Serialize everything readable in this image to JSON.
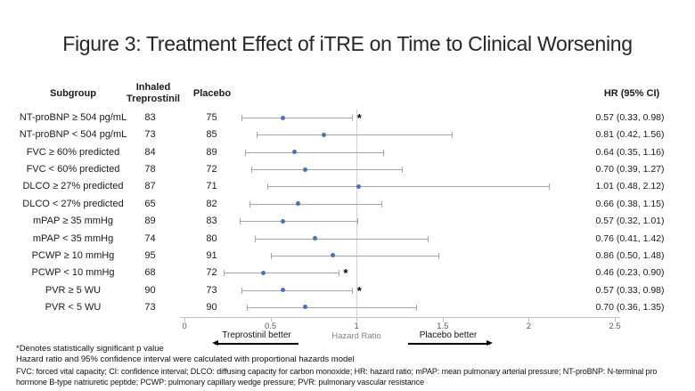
{
  "title": "Figure 3: Treatment Effect of iTRE on Time to Clinical Worsening",
  "table": {
    "headers": {
      "subgroup": "Subgroup",
      "treatment": "Inhaled Treprostinil",
      "placebo": "Placebo",
      "hr": "HR (95% CI)"
    }
  },
  "chart_data": {
    "type": "forest",
    "xlabel": "Hazard Ratio",
    "xlim": [
      0,
      2.5
    ],
    "x_ticks": [
      0,
      0.5,
      1,
      1.5,
      2,
      2.5
    ],
    "x_tick_labels": [
      "0",
      "0.5",
      "1",
      "1.5",
      "2",
      "2.5"
    ],
    "reference_line": 1,
    "direction_labels": {
      "left": "Treprostinil better",
      "right": "Placebo better"
    },
    "rows": [
      {
        "subgroup": "NT-proBNP ≥ 504 pg/mL",
        "treatment_n": "83",
        "placebo_n": "75",
        "hr": 0.57,
        "ci_lo": 0.33,
        "ci_hi": 0.98,
        "hr_text": "0.57 (0.33, 0.98)",
        "significant": true
      },
      {
        "subgroup": "NT-proBNP < 504 pg/mL",
        "treatment_n": "73",
        "placebo_n": "85",
        "hr": 0.81,
        "ci_lo": 0.42,
        "ci_hi": 1.56,
        "hr_text": "0.81 (0.42, 1.56)",
        "significant": false
      },
      {
        "subgroup": "FVC ≥ 60% predicted",
        "treatment_n": "84",
        "placebo_n": "89",
        "hr": 0.64,
        "ci_lo": 0.35,
        "ci_hi": 1.16,
        "hr_text": "0.64 (0.35, 1.16)",
        "significant": false
      },
      {
        "subgroup": "FVC < 60% predicted",
        "treatment_n": "78",
        "placebo_n": "72",
        "hr": 0.7,
        "ci_lo": 0.39,
        "ci_hi": 1.27,
        "hr_text": "0.70 (0.39, 1.27)",
        "significant": false
      },
      {
        "subgroup": "DLCO ≥ 27% predicted",
        "treatment_n": "87",
        "placebo_n": "71",
        "hr": 1.01,
        "ci_lo": 0.48,
        "ci_hi": 2.12,
        "hr_text": "1.01 (0.48, 2.12)",
        "significant": false
      },
      {
        "subgroup": "DLCO < 27% predicted",
        "treatment_n": "65",
        "placebo_n": "82",
        "hr": 0.66,
        "ci_lo": 0.38,
        "ci_hi": 1.15,
        "hr_text": "0.66 (0.38, 1.15)",
        "significant": false
      },
      {
        "subgroup": "mPAP ≥ 35 mmHg",
        "treatment_n": "89",
        "placebo_n": "83",
        "hr": 0.57,
        "ci_lo": 0.32,
        "ci_hi": 1.01,
        "hr_text": "0.57 (0.32, 1.01)",
        "significant": false
      },
      {
        "subgroup": "mPAP < 35 mmHg",
        "treatment_n": "74",
        "placebo_n": "80",
        "hr": 0.76,
        "ci_lo": 0.41,
        "ci_hi": 1.42,
        "hr_text": "0.76 (0.41, 1.42)",
        "significant": false
      },
      {
        "subgroup": "PCWP ≥ 10 mmHg",
        "treatment_n": "95",
        "placebo_n": "91",
        "hr": 0.86,
        "ci_lo": 0.5,
        "ci_hi": 1.48,
        "hr_text": "0.86 (0.50, 1.48)",
        "significant": false
      },
      {
        "subgroup": "PCWP < 10 mmHg",
        "treatment_n": "68",
        "placebo_n": "72",
        "hr": 0.46,
        "ci_lo": 0.23,
        "ci_hi": 0.9,
        "hr_text": "0.46 (0.23, 0.90)",
        "significant": true
      },
      {
        "subgroup": "PVR ≥ 5 WU",
        "treatment_n": "90",
        "placebo_n": "73",
        "hr": 0.57,
        "ci_lo": 0.33,
        "ci_hi": 0.98,
        "hr_text": "0.57 (0.33, 0.98)",
        "significant": true
      },
      {
        "subgroup": "PVR < 5 WU",
        "treatment_n": "73",
        "placebo_n": "90",
        "hr": 0.7,
        "ci_lo": 0.36,
        "ci_hi": 1.35,
        "hr_text": "0.70 (0.36, 1.35)",
        "significant": false
      }
    ],
    "significance_marker": "*"
  },
  "footnotes": [
    "*Denotes statistically significant p value",
    "Hazard ratio and 95% confidence interval were calculated with proportional hazards model",
    "FVC: forced vital capacity; CI: confidence interval; DLCO: diffusing capacity for carbon monoxide; HR: hazard ratio; mPAP: mean pulmonary arterial pressure; NT-proBNP: N-terminal pro hormone B-type natriuretic peptide; PCWP: pulmonary capillary wedge pressure; PVR:  pulmonary vascular resistance"
  ],
  "colors": {
    "point": "#4472c4",
    "ci_line": "#a6a6a6",
    "axis": "#bfbfbf",
    "reference_line": "#d2d2d2",
    "tick_label": "#595959",
    "axis_label": "#808080"
  }
}
